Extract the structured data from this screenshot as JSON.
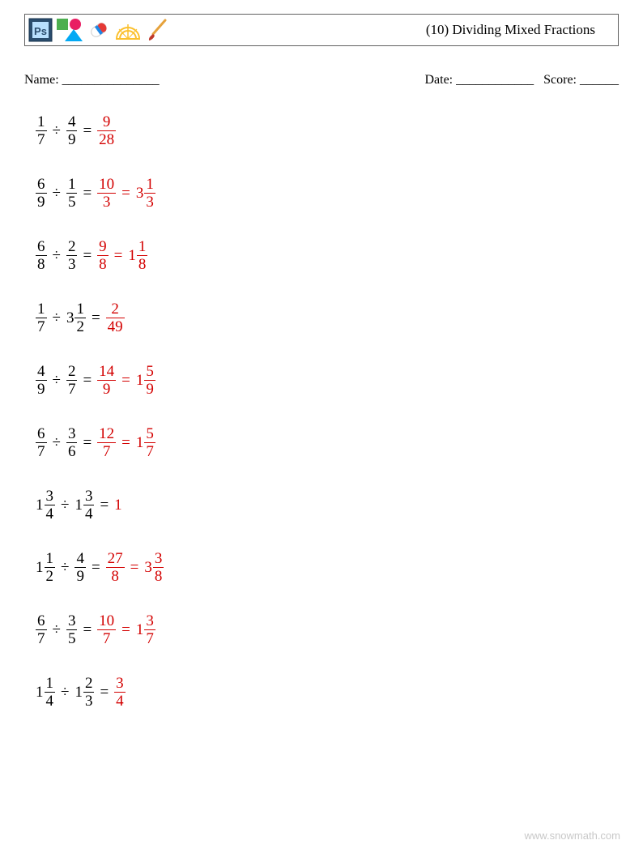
{
  "title": "(10) Dividing Mixed Fractions",
  "info": {
    "name_label": "Name: _______________",
    "date_label": "Date: ____________",
    "score_label": "Score: ______"
  },
  "colors": {
    "text": "#000000",
    "answer": "#d30000",
    "border": "#606060",
    "watermark": "#c8c8c8",
    "background": "#ffffff"
  },
  "typography": {
    "body_font": "Georgia, Times New Roman, serif",
    "title_fontsize": 17,
    "problem_fontsize": 19,
    "info_fontsize": 16
  },
  "icons": {
    "ps": {
      "bg": "#2a4d6e",
      "inner": "#b8e0ff",
      "text": "Ps"
    },
    "shapes": {
      "square": "#4caf50",
      "circle": "#e91e63",
      "triangle": "#03a9f4"
    },
    "eraser": {
      "body_top": "#ffffff",
      "body_bottom": "#e53935",
      "band": "#1e88e5"
    },
    "protractor": {
      "stroke": "#fbc02d"
    },
    "brush": {
      "handle": "#e6a23c",
      "tip": "#c0392b"
    }
  },
  "problems": [
    {
      "left": {
        "num": "1",
        "den": "7"
      },
      "right": {
        "num": "4",
        "den": "9"
      },
      "ans1": {
        "num": "9",
        "den": "28"
      }
    },
    {
      "left": {
        "num": "6",
        "den": "9"
      },
      "right": {
        "num": "1",
        "den": "5"
      },
      "ans1": {
        "num": "10",
        "den": "3"
      },
      "ans2": {
        "whole": "3",
        "num": "1",
        "den": "3"
      }
    },
    {
      "left": {
        "num": "6",
        "den": "8"
      },
      "right": {
        "num": "2",
        "den": "3"
      },
      "ans1": {
        "num": "9",
        "den": "8"
      },
      "ans2": {
        "whole": "1",
        "num": "1",
        "den": "8"
      }
    },
    {
      "left": {
        "num": "1",
        "den": "7"
      },
      "right": {
        "whole": "3",
        "num": "1",
        "den": "2"
      },
      "ans1": {
        "num": "2",
        "den": "49"
      }
    },
    {
      "left": {
        "num": "4",
        "den": "9"
      },
      "right": {
        "num": "2",
        "den": "7"
      },
      "ans1": {
        "num": "14",
        "den": "9"
      },
      "ans2": {
        "whole": "1",
        "num": "5",
        "den": "9"
      }
    },
    {
      "left": {
        "num": "6",
        "den": "7"
      },
      "right": {
        "num": "3",
        "den": "6"
      },
      "ans1": {
        "num": "12",
        "den": "7"
      },
      "ans2": {
        "whole": "1",
        "num": "5",
        "den": "7"
      }
    },
    {
      "left": {
        "whole": "1",
        "num": "3",
        "den": "4"
      },
      "right": {
        "whole": "1",
        "num": "3",
        "den": "4"
      },
      "ans_plain": "1"
    },
    {
      "left": {
        "whole": "1",
        "num": "1",
        "den": "2"
      },
      "right": {
        "num": "4",
        "den": "9"
      },
      "ans1": {
        "num": "27",
        "den": "8"
      },
      "ans2": {
        "whole": "3",
        "num": "3",
        "den": "8"
      }
    },
    {
      "left": {
        "num": "6",
        "den": "7"
      },
      "right": {
        "num": "3",
        "den": "5"
      },
      "ans1": {
        "num": "10",
        "den": "7"
      },
      "ans2": {
        "whole": "1",
        "num": "3",
        "den": "7"
      }
    },
    {
      "left": {
        "whole": "1",
        "num": "1",
        "den": "4"
      },
      "right": {
        "whole": "1",
        "num": "2",
        "den": "3"
      },
      "ans1": {
        "num": "3",
        "den": "4"
      }
    }
  ],
  "operators": {
    "divide": "÷",
    "equals": "="
  },
  "watermark": "www.snowmath.com"
}
